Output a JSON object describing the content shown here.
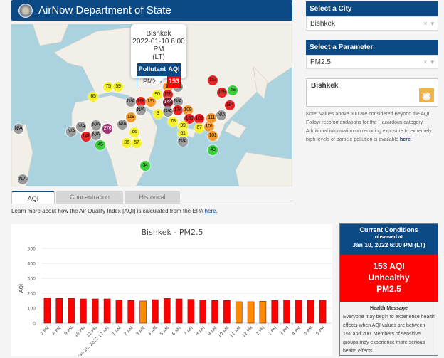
{
  "header": {
    "title": "AirNow Department of State"
  },
  "map": {
    "popup": {
      "city": "Bishkek",
      "datetime": "2022-01-10 6:00 PM",
      "tz": "(LT)",
      "col_pollutant": "Pollutant",
      "col_aqi": "AQI",
      "pollutant": "PM2.5",
      "aqi": "153"
    },
    "markers": [
      "75",
      "59",
      "65",
      "N/A",
      "168",
      "137",
      "N/A",
      "119",
      "N/A",
      "276",
      "N/A",
      "N/A",
      "141",
      "N/A",
      "N/A",
      "45",
      "66",
      "86",
      "57",
      "34",
      "N/A",
      "N/A",
      "153",
      "13",
      "N/A",
      "155",
      "90",
      "N/A",
      "144",
      "174",
      "109",
      "180",
      "103",
      "N/A",
      "78",
      "99",
      "61",
      "N/A",
      "67",
      "101",
      "111",
      "N/A",
      "101",
      "159",
      "48",
      "184",
      "48",
      "3"
    ],
    "marker_colors": {
      "green": "#3ccf3c",
      "yellow": "#f6f12a",
      "orange": "#f59a2e",
      "red": "#e82323",
      "purple": "#9c3474",
      "maroon": "#7e1a30",
      "gray": "#9a9a9a"
    }
  },
  "sidebar": {
    "city_header": "Select a City",
    "city_value": "Bishkek",
    "param_header": "Select a Parameter",
    "param_value": "PM2.5",
    "clear": "×",
    "caret": "▾",
    "city_box": "Bishkek",
    "note": "Note: Values above 500 are considered Beyond the AQI. Follow recommendations for the Hazardous category. Additional information on reducing exposure to extremely high levels of particle pollution is available ",
    "note_link": "here",
    "note_end": "."
  },
  "tabs": [
    {
      "label": "AQI"
    },
    {
      "label": "Concentration"
    },
    {
      "label": "Historical"
    }
  ],
  "learn": {
    "text": "Learn more about how the Air Quality Index [AQI] is calculated from the EPA ",
    "link": "here",
    "end": "."
  },
  "chart_data": {
    "type": "bar",
    "title": "Bishkek - PM2.5",
    "xlabel": "",
    "ylabel": "AQI",
    "ylim": [
      0,
      500
    ],
    "yticks": [
      "0",
      "100",
      "200",
      "300",
      "400",
      "500"
    ],
    "categories": [
      "7 PM",
      "8 PM",
      "9 PM",
      "10 PM",
      "11 PM",
      "Jan 10, 2022 12 AM",
      "1 AM",
      "2 AM",
      "3 AM",
      "4 AM",
      "5 AM",
      "6 AM",
      "7 AM",
      "8 AM",
      "9 AM",
      "10 AM",
      "11 AM",
      "12 PM",
      "1 PM",
      "2 PM",
      "3 PM",
      "4 PM",
      "5 PM",
      "6 PM"
    ],
    "values": [
      170,
      167,
      167,
      162,
      162,
      162,
      154,
      151,
      148,
      157,
      165,
      162,
      159,
      154,
      151,
      151,
      143,
      143,
      146,
      151,
      154,
      154,
      154,
      153
    ],
    "colors": {
      "unhealthy": "#ff0000",
      "usg": "#ff8c00"
    }
  },
  "current": {
    "title": "Current Conditions",
    "observed": "observed at",
    "datetime": "Jan 10, 2022 6:00 PM (LT)",
    "aqi": "153 AQI",
    "category": "Unhealthy",
    "pollutant": "PM2.5",
    "health_title": "Health Message",
    "health_msg": "Everyone may begin to experience health effects when AQI values are between 151 and 200. Members of sensitive groups may experience more serious health effects."
  }
}
